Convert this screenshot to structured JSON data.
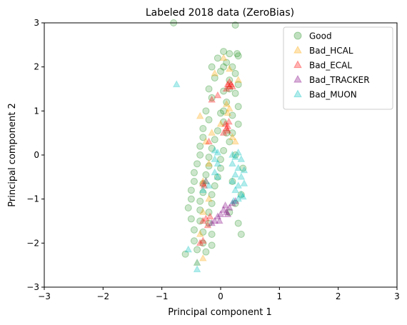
{
  "chart_data": {
    "type": "scatter",
    "title": "Labeled 2018 data (ZeroBias)",
    "xlabel": "Principal component 1",
    "ylabel": "Principal component 2",
    "xlim": [
      -3,
      3
    ],
    "ylim": [
      -3,
      3
    ],
    "xticks": [
      "−3",
      "−2",
      "−1",
      "0",
      "1",
      "2",
      "3"
    ],
    "yticks": [
      "−3",
      "−2",
      "−1",
      "0",
      "1",
      "2",
      "3"
    ],
    "grid": false,
    "legend_position": "top-right",
    "series": [
      {
        "name": "Good",
        "marker": "circle",
        "color": "#008000",
        "alpha": 0.2,
        "points": [
          [
            -0.8,
            3.0
          ],
          [
            0.25,
            2.95
          ],
          [
            0.05,
            2.35
          ],
          [
            0.15,
            2.3
          ],
          [
            0.3,
            2.25
          ],
          [
            -0.05,
            2.2
          ],
          [
            0.1,
            2.1
          ],
          [
            0.2,
            2.0
          ],
          [
            -0.15,
            2.0
          ],
          [
            0.0,
            1.9
          ],
          [
            0.25,
            1.85
          ],
          [
            -0.1,
            1.75
          ],
          [
            0.15,
            1.7
          ],
          [
            0.3,
            1.6
          ],
          [
            -0.2,
            1.5
          ],
          [
            0.05,
            1.45
          ],
          [
            0.25,
            1.4
          ],
          [
            -0.15,
            1.3
          ],
          [
            0.1,
            1.2
          ],
          [
            0.3,
            1.1
          ],
          [
            -0.25,
            1.0
          ],
          [
            0.0,
            0.95
          ],
          [
            0.2,
            0.9
          ],
          [
            -0.2,
            0.8
          ],
          [
            0.05,
            0.75
          ],
          [
            0.3,
            0.7
          ],
          [
            -0.3,
            0.6
          ],
          [
            -0.05,
            0.55
          ],
          [
            0.2,
            0.5
          ],
          [
            -0.3,
            0.4
          ],
          [
            -0.1,
            0.35
          ],
          [
            0.15,
            0.3
          ],
          [
            -0.35,
            0.2
          ],
          [
            -0.15,
            0.15
          ],
          [
            0.05,
            0.1
          ],
          [
            -0.35,
            0.0
          ],
          [
            -0.2,
            -0.05
          ],
          [
            0.0,
            -0.1
          ],
          [
            -0.4,
            -0.2
          ],
          [
            -0.2,
            -0.25
          ],
          [
            0.0,
            -0.3
          ],
          [
            -0.45,
            -0.4
          ],
          [
            -0.25,
            -0.45
          ],
          [
            -0.05,
            -0.5
          ],
          [
            -0.45,
            -0.6
          ],
          [
            -0.3,
            -0.65
          ],
          [
            -0.1,
            -0.7
          ],
          [
            -0.5,
            -0.8
          ],
          [
            -0.3,
            -0.85
          ],
          [
            -0.15,
            -0.9
          ],
          [
            -0.5,
            -1.0
          ],
          [
            -0.35,
            -1.05
          ],
          [
            -0.15,
            -1.1
          ],
          [
            -0.55,
            -1.2
          ],
          [
            -0.35,
            -1.25
          ],
          [
            -0.2,
            -1.3
          ],
          [
            -0.5,
            -1.45
          ],
          [
            -0.35,
            -1.5
          ],
          [
            -0.2,
            -1.55
          ],
          [
            -0.45,
            -1.7
          ],
          [
            -0.3,
            -1.75
          ],
          [
            -0.15,
            -1.8
          ],
          [
            -0.45,
            -1.95
          ],
          [
            -0.3,
            -2.0
          ],
          [
            -0.15,
            -2.05
          ],
          [
            -0.4,
            -2.15
          ],
          [
            -0.25,
            -2.2
          ],
          [
            -0.6,
            -2.25
          ],
          [
            0.3,
            -1.55
          ],
          [
            0.35,
            -1.8
          ],
          [
            0.15,
            -1.3
          ],
          [
            0.25,
            -1.1
          ],
          [
            0.35,
            -0.9
          ],
          [
            0.2,
            -0.6
          ],
          [
            0.38,
            -0.3
          ],
          [
            0.25,
            0.0
          ],
          [
            0.1,
            0.5
          ],
          [
            0.05,
            1.0
          ],
          [
            0.15,
            1.5
          ],
          [
            0.05,
            2.0
          ],
          [
            0.28,
            2.3
          ]
        ]
      },
      {
        "name": "Bad_HCAL",
        "marker": "triangle",
        "color": "#ffa500",
        "alpha": 0.25,
        "points": [
          [
            -0.35,
            0.88
          ],
          [
            0.05,
            2.2
          ],
          [
            0.15,
            1.95
          ],
          [
            -0.1,
            1.85
          ],
          [
            0.1,
            1.15
          ],
          [
            0.15,
            1.05
          ],
          [
            0.12,
            0.95
          ],
          [
            0.0,
            0.7
          ],
          [
            0.2,
            0.4
          ],
          [
            0.25,
            0.3
          ],
          [
            -0.15,
            0.5
          ],
          [
            -0.25,
            0.3
          ],
          [
            -0.2,
            -0.2
          ],
          [
            -0.3,
            -0.6
          ],
          [
            -0.2,
            -1.0
          ],
          [
            -0.3,
            -1.3
          ],
          [
            -0.35,
            -1.8
          ],
          [
            -0.4,
            -2.45
          ],
          [
            -0.3,
            -2.35
          ],
          [
            0.3,
            1.7
          ]
        ]
      },
      {
        "name": "Bad_ECAL",
        "marker": "triangle",
        "color": "#ff0000",
        "alpha": 0.25,
        "points": [
          [
            0.12,
            1.6
          ],
          [
            0.15,
            1.55
          ],
          [
            0.18,
            1.6
          ],
          [
            0.1,
            1.5
          ],
          [
            0.15,
            1.65
          ],
          [
            0.2,
            1.55
          ],
          [
            0.08,
            0.7
          ],
          [
            0.12,
            0.65
          ],
          [
            0.1,
            0.6
          ],
          [
            0.14,
            0.75
          ],
          [
            0.05,
            0.5
          ],
          [
            0.12,
            0.55
          ],
          [
            -0.15,
            1.25
          ],
          [
            -0.05,
            1.35
          ],
          [
            -0.2,
            0.3
          ],
          [
            -0.25,
            -0.6
          ],
          [
            -0.28,
            -0.7
          ],
          [
            -0.3,
            -0.65
          ],
          [
            -0.25,
            -1.45
          ],
          [
            -0.3,
            -1.5
          ],
          [
            -0.22,
            -1.6
          ],
          [
            -0.18,
            -1.4
          ],
          [
            -0.35,
            -2.0
          ],
          [
            -0.3,
            -1.95
          ]
        ]
      },
      {
        "name": "Bad_TRACKER",
        "marker": "triangle",
        "color": "#800080",
        "alpha": 0.25,
        "points": [
          [
            0.05,
            -1.25
          ],
          [
            0.1,
            -1.3
          ],
          [
            0.15,
            -1.2
          ],
          [
            0.0,
            -1.35
          ],
          [
            0.08,
            -1.15
          ],
          [
            -0.05,
            -1.4
          ],
          [
            -0.1,
            -1.5
          ],
          [
            -0.15,
            -1.55
          ],
          [
            0.2,
            -1.1
          ],
          [
            0.25,
            -1.05
          ],
          [
            0.12,
            -1.35
          ],
          [
            -0.02,
            -1.5
          ]
        ]
      },
      {
        "name": "Bad_MUON",
        "marker": "triangle",
        "color": "#00bfbf",
        "alpha": 0.25,
        "points": [
          [
            -0.75,
            1.6
          ],
          [
            -0.55,
            -2.15
          ],
          [
            -0.4,
            -2.6
          ],
          [
            -0.4,
            -2.45
          ],
          [
            -0.1,
            0.1
          ],
          [
            -0.05,
            0.05
          ],
          [
            -0.1,
            -0.1
          ],
          [
            -0.05,
            -0.2
          ],
          [
            -0.1,
            -0.4
          ],
          [
            -0.05,
            -0.5
          ],
          [
            -0.25,
            -0.6
          ],
          [
            -0.2,
            -0.7
          ],
          [
            -0.3,
            -0.8
          ],
          [
            0.2,
            0.0
          ],
          [
            0.25,
            -0.05
          ],
          [
            0.3,
            0.05
          ],
          [
            0.35,
            -0.1
          ],
          [
            0.2,
            -0.2
          ],
          [
            0.3,
            -0.3
          ],
          [
            0.4,
            -0.35
          ],
          [
            0.25,
            -0.45
          ],
          [
            0.35,
            -0.5
          ],
          [
            0.2,
            -0.6
          ],
          [
            0.3,
            -0.7
          ],
          [
            0.4,
            -0.65
          ],
          [
            0.25,
            -0.8
          ],
          [
            0.35,
            -0.9
          ],
          [
            0.3,
            -1.0
          ],
          [
            0.38,
            -0.95
          ],
          [
            0.22,
            -1.05
          ]
        ]
      }
    ]
  }
}
